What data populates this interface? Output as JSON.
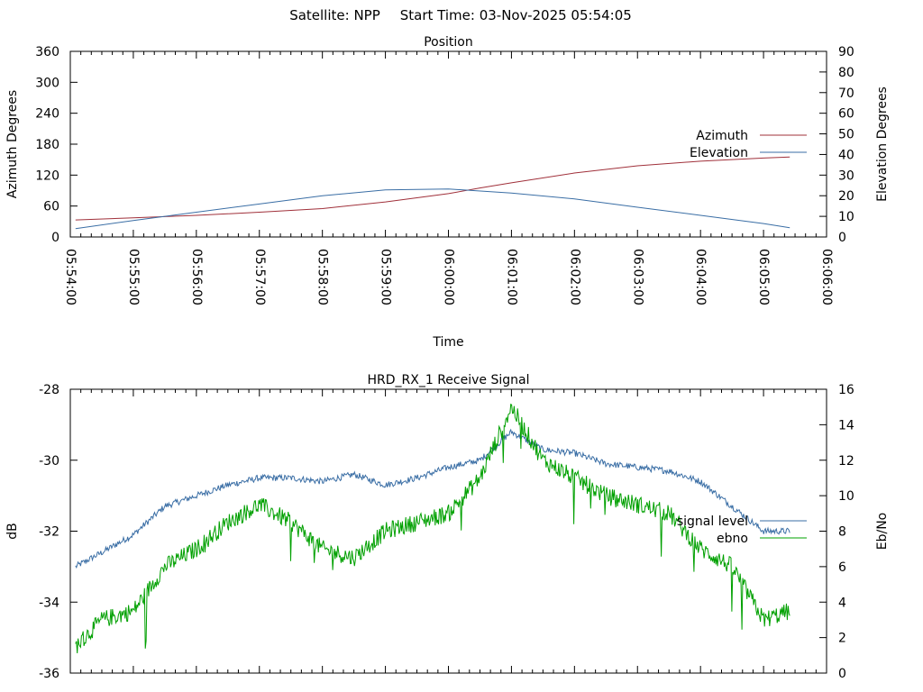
{
  "header": {
    "satellite": "Satellite: NPP",
    "start_time": "Start Time: 03-Nov-2025 05:54:05"
  },
  "chart_data": [
    {
      "type": "line",
      "title": "Position",
      "xlabel": "Time",
      "ylabel": "Azimuth Degrees",
      "y2label": "Elevation Degrees",
      "x_ticks": [
        "05:54:00",
        "05:55:00",
        "05:56:00",
        "05:57:00",
        "05:58:00",
        "05:59:00",
        "06:00:00",
        "06:01:00",
        "06:02:00",
        "06:03:00",
        "06:04:00",
        "06:05:00",
        "06:06:00"
      ],
      "xlim": [
        0,
        720
      ],
      "ylim": [
        0,
        360
      ],
      "y_ticks": [
        0,
        60,
        120,
        180,
        240,
        300,
        360
      ],
      "y2lim": [
        0,
        90
      ],
      "y2_ticks": [
        0,
        10,
        20,
        30,
        40,
        50,
        60,
        70,
        80,
        90
      ],
      "legend_position": "right",
      "colors": {
        "Azimuth": "#a0303a",
        "Elevation": "#3a6ea5"
      },
      "series": [
        {
          "name": "Azimuth",
          "axis": "left",
          "x": [
            5,
            60,
            120,
            180,
            240,
            300,
            360,
            390,
            420,
            480,
            540,
            600,
            660,
            685
          ],
          "values": [
            33,
            37,
            42,
            48,
            55,
            68,
            84,
            95,
            105,
            124,
            138,
            147,
            153,
            155
          ]
        },
        {
          "name": "Elevation",
          "axis": "right",
          "x": [
            5,
            60,
            120,
            180,
            240,
            300,
            360,
            420,
            480,
            540,
            600,
            660,
            685
          ],
          "values": [
            4,
            8,
            12,
            16,
            20,
            22.8,
            23.3,
            21.3,
            18.5,
            14.4,
            10.5,
            6.5,
            4.5
          ]
        }
      ]
    },
    {
      "type": "line",
      "title": "HRD_RX_1 Receive Signal",
      "xlabel": "",
      "ylabel": "dB",
      "y2label": "Eb/No",
      "xlim": [
        0,
        720
      ],
      "ylim": [
        -36,
        -28
      ],
      "y_ticks": [
        -36,
        -34,
        -32,
        -30,
        -28
      ],
      "y2lim": [
        0,
        16
      ],
      "y2_ticks": [
        0,
        2,
        4,
        6,
        8,
        10,
        12,
        14,
        16
      ],
      "legend_position": "right",
      "colors": {
        "signal_level": "#3a6ea5",
        "ebno": "#00a000"
      },
      "series": [
        {
          "name": "signal_level",
          "axis": "left",
          "x": [
            5,
            30,
            60,
            90,
            120,
            150,
            180,
            210,
            240,
            270,
            300,
            330,
            360,
            390,
            420,
            450,
            480,
            510,
            540,
            570,
            600,
            630,
            660,
            685
          ],
          "values": [
            -33.0,
            -32.6,
            -32.1,
            -31.3,
            -31.0,
            -30.7,
            -30.5,
            -30.5,
            -30.6,
            -30.4,
            -30.7,
            -30.5,
            -30.2,
            -30.0,
            -29.2,
            -29.7,
            -29.8,
            -30.1,
            -30.2,
            -30.3,
            -30.6,
            -31.3,
            -32.0,
            -32.0
          ]
        },
        {
          "name": "ebno",
          "axis": "right",
          "x": [
            5,
            30,
            60,
            90,
            120,
            150,
            180,
            210,
            240,
            270,
            300,
            330,
            360,
            390,
            420,
            450,
            480,
            510,
            540,
            570,
            600,
            630,
            660,
            685
          ],
          "values": [
            1.5,
            3.0,
            3.5,
            6.0,
            7.0,
            8.5,
            9.5,
            8.5,
            7.0,
            6.5,
            8.0,
            8.5,
            9.0,
            11.0,
            15.0,
            12.0,
            11.0,
            10.0,
            9.5,
            9.0,
            7.0,
            6.0,
            3.0,
            3.5
          ]
        }
      ]
    }
  ]
}
